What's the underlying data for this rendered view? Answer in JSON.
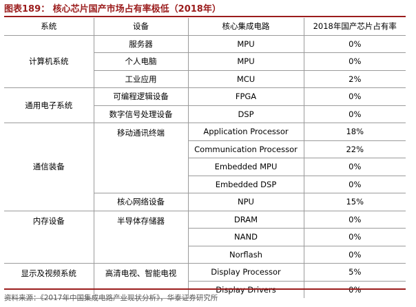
{
  "title": "图表189：  核心芯片国产市场占有率极低（2018年）",
  "headers": [
    "系统",
    "设备",
    "核心集成电路",
    "2018年国产芯片占有率"
  ],
  "rows": [
    {
      "system": "计算机系统",
      "device": "服务器",
      "chip": "MPU",
      "share": "0%"
    },
    {
      "system": "",
      "device": "个人电脑",
      "chip": "MPU",
      "share": "0%"
    },
    {
      "system": "",
      "device": "工业应用",
      "chip": "MCU",
      "share": "2%"
    },
    {
      "system": "通用电子系统",
      "device": "可编程逻辑设备",
      "chip": "FPGA",
      "share": "0%"
    },
    {
      "system": "",
      "device": "数字信号处理设备",
      "chip": "DSP",
      "share": "0%"
    },
    {
      "system": "通信装备",
      "device": "移动通讯终端",
      "chip": "Application Processor",
      "share": "18%"
    },
    {
      "system": "",
      "device": "",
      "chip": "Communication Processor",
      "share": "22%"
    },
    {
      "system": "",
      "device": "",
      "chip": "Embedded MPU",
      "share": "0%"
    },
    {
      "system": "",
      "device": "",
      "chip": "Embedded DSP",
      "share": "0%"
    },
    {
      "system": "",
      "device": "核心网络设备",
      "chip": "NPU",
      "share": "15%"
    },
    {
      "system": "内存设备",
      "device": "半导体存储器",
      "chip": "DRAM",
      "share": "0%"
    },
    {
      "system": "",
      "device": "",
      "chip": "NAND",
      "share": "0%"
    },
    {
      "system": "",
      "device": "",
      "chip": "Norflash",
      "share": "0%"
    },
    {
      "system": "显示及视频系统",
      "device": "高清电视、智能电视",
      "chip": "Display Processor",
      "share": "5%"
    },
    {
      "system": "",
      "device": "",
      "chip": "Display Drivers",
      "share": "0%"
    }
  ],
  "source": "资料来源：《2017年中国集成电路产业现状分析》，华泰证券研究所",
  "colors": {
    "accent": "#9b1c1c",
    "border": "#9a9a9a"
  }
}
